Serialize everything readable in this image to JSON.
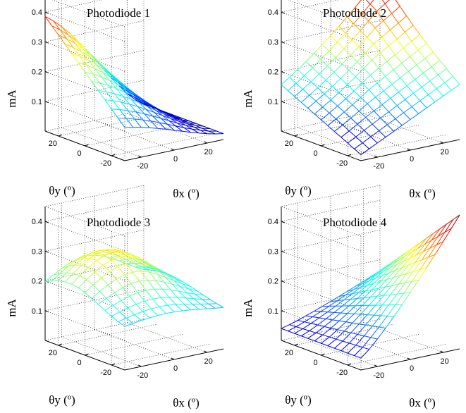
{
  "figure": {
    "zlabel": "mA",
    "xlabel": "θx (º)",
    "ylabel": "θy (º)"
  },
  "chart_data": [
    {
      "type": "surface",
      "title": "Photodiode 1",
      "xlabel": "θx (º)",
      "ylabel": "θy (º)",
      "zlabel": "mA",
      "xlim": [
        -30,
        30
      ],
      "ylim": [
        -30,
        30
      ],
      "zlim": [
        0,
        0.45
      ],
      "xticks": [
        -20,
        0,
        20
      ],
      "yticks": [
        -20,
        0,
        20
      ],
      "zticks": [
        0.1,
        0.2,
        0.3,
        0.4
      ],
      "colormap": "jet",
      "grid": true,
      "peak": {
        "x": -30,
        "y": 30,
        "z": 0.45
      },
      "corner_values": {
        "x-30_y-30": 0.12,
        "x30_y-30": 0.02,
        "x30_y30": 0.08,
        "x-30_y30": 0.45
      },
      "grid_points": 13
    },
    {
      "type": "surface",
      "title": "Photodiode 2",
      "xlabel": "θx (º)",
      "ylabel": "θy (º)",
      "zlabel": "mA",
      "xlim": [
        -30,
        30
      ],
      "ylim": [
        -30,
        30
      ],
      "zlim": [
        0,
        0.45
      ],
      "xticks": [
        -20,
        0,
        20
      ],
      "yticks": [
        -20,
        0,
        20
      ],
      "zticks": [
        0.1,
        0.2,
        0.3,
        0.4
      ],
      "colormap": "jet",
      "grid": true,
      "peak": {
        "x": 30,
        "y": 30,
        "z": 0.45
      },
      "corner_values": {
        "x-30_y-30": 0.02,
        "x30_y-30": 0.14,
        "x30_y30": 0.45,
        "x-30_y30": 0.14
      },
      "grid_points": 13
    },
    {
      "type": "surface",
      "title": "Photodiode 3",
      "xlabel": "θx (º)",
      "ylabel": "θy (º)",
      "zlabel": "mA",
      "xlim": [
        -30,
        30
      ],
      "ylim": [
        -30,
        30
      ],
      "zlim": [
        0,
        0.45
      ],
      "xticks": [
        -20,
        0,
        20
      ],
      "yticks": [
        -20,
        0,
        20
      ],
      "zticks": [
        0.1,
        0.2,
        0.3,
        0.4
      ],
      "colormap": "jet",
      "grid": true,
      "peak": {
        "x": -20,
        "y": 20,
        "z": 0.3
      },
      "corner_values": {
        "x-30_y-30": 0.13,
        "x30_y-30": 0.15,
        "x30_y30": 0.13,
        "x-30_y30": 0.13
      },
      "grid_points": 13
    },
    {
      "type": "surface",
      "title": "Photodiode 4",
      "xlabel": "θx (º)",
      "ylabel": "θy (º)",
      "zlabel": "mA",
      "xlim": [
        -30,
        30
      ],
      "ylim": [
        -30,
        30
      ],
      "zlim": [
        0,
        0.45
      ],
      "xticks": [
        -20,
        0,
        20
      ],
      "yticks": [
        -20,
        0,
        20
      ],
      "zticks": [
        0.1,
        0.2,
        0.3,
        0.4
      ],
      "colormap": "jet",
      "grid": true,
      "peak": {
        "x": 30,
        "y": -30,
        "z": 0.45
      },
      "corner_values": {
        "x-30_y-30": 0.08,
        "x30_y-30": 0.45,
        "x30_y30": 0.12,
        "x-30_y30": 0.04
      },
      "grid_points": 13
    }
  ]
}
